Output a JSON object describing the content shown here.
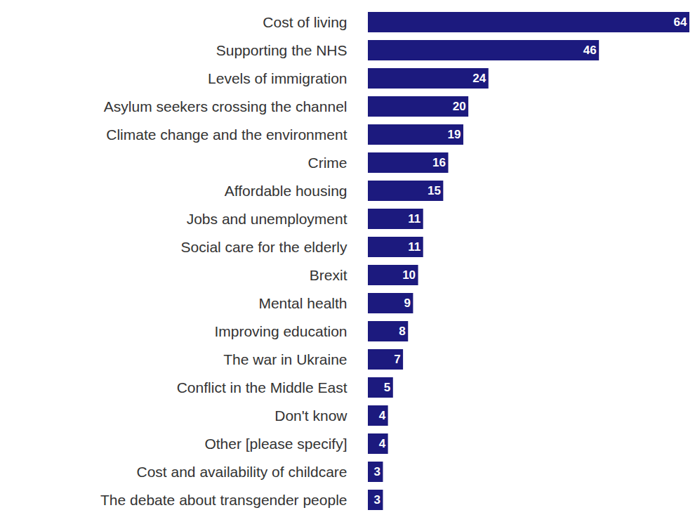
{
  "chart_data": {
    "type": "bar",
    "orientation": "horizontal",
    "categories": [
      "Cost of living",
      "Supporting the NHS",
      "Levels of immigration",
      "Asylum seekers crossing the channel",
      "Climate change and the environment",
      "Crime",
      "Affordable housing",
      "Jobs and unemployment",
      "Social care for the elderly",
      "Brexit",
      "Mental health",
      "Improving education",
      "The war in Ukraine",
      "Conflict in the Middle East",
      "Don't know",
      "Other [please specify]",
      "Cost and availability of childcare",
      "The debate about transgender people"
    ],
    "values": [
      64,
      46,
      24,
      20,
      19,
      16,
      15,
      11,
      11,
      10,
      9,
      8,
      7,
      5,
      4,
      4,
      3,
      3
    ],
    "color": "#1c1a7e",
    "xlim": [
      0,
      64
    ],
    "data_labels": true,
    "tick_labels": "y"
  }
}
